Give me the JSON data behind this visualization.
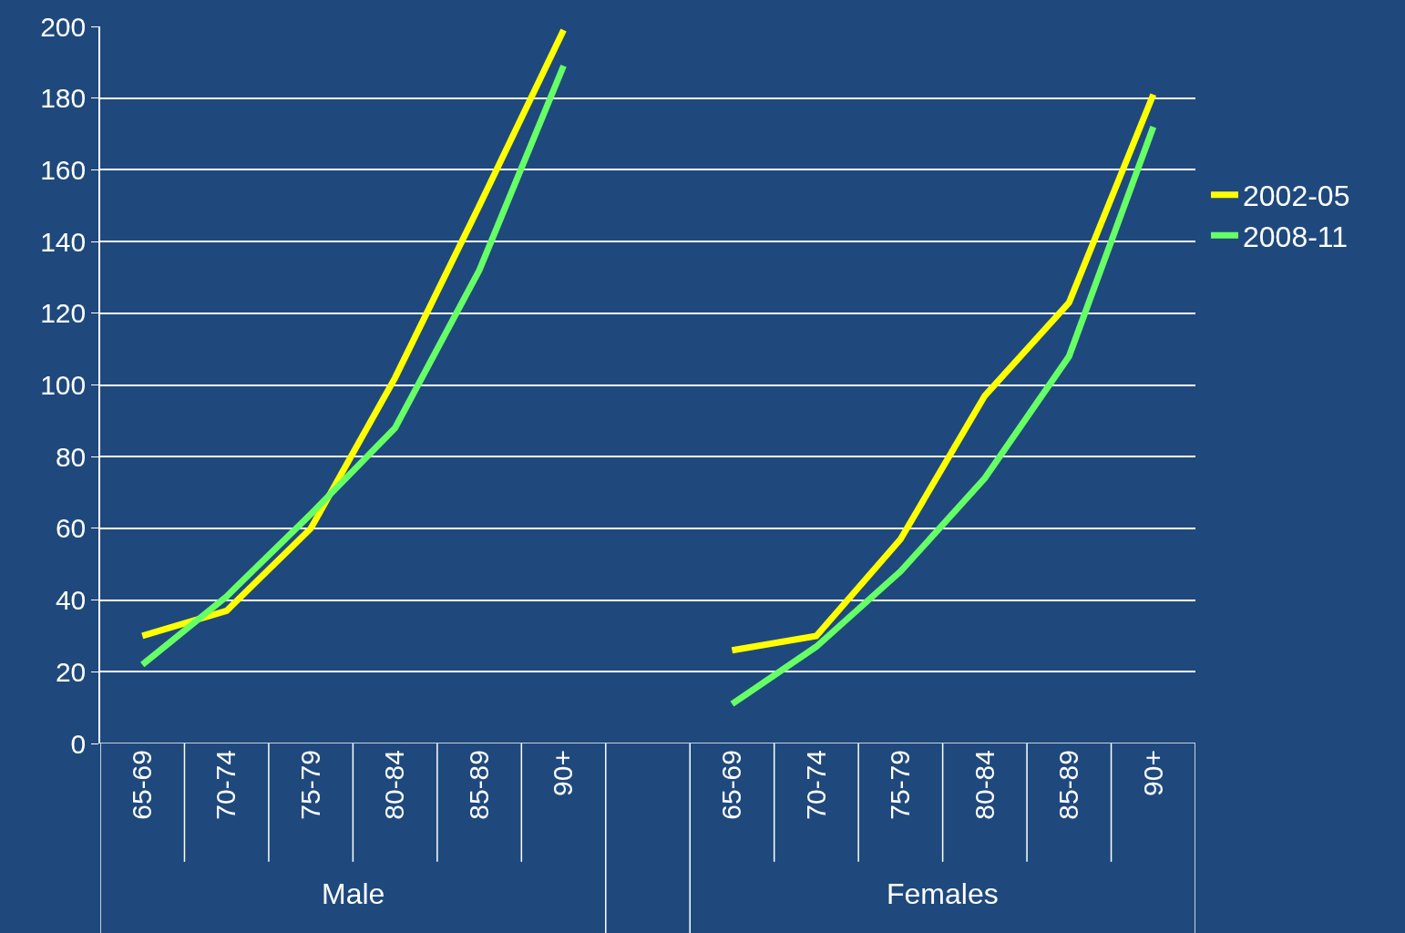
{
  "chart_data": {
    "type": "line",
    "categories": [
      "65-69",
      "70-74",
      "75-79",
      "80-84",
      "85-89",
      "90+",
      null,
      "65-69",
      "70-74",
      "75-79",
      "80-84",
      "85-89",
      "90+"
    ],
    "series": [
      {
        "name": "2002-05",
        "color": "#ffff00",
        "values": [
          30,
          37,
          60,
          102,
          150,
          199,
          null,
          26,
          30,
          57,
          97,
          123,
          181
        ]
      },
      {
        "name": "2008-11",
        "color": "#66ff66",
        "values": [
          22,
          41,
          64,
          88,
          132,
          189,
          null,
          11,
          27,
          48,
          74,
          108,
          172
        ]
      }
    ],
    "ylim": [
      0,
      200
    ],
    "yticks": [
      0,
      20,
      40,
      60,
      80,
      100,
      120,
      140,
      160,
      180,
      200
    ],
    "grid": "y",
    "legend": "right",
    "marker": "none",
    "line_style": "solid",
    "annotations": [
      "Male",
      "Females"
    ]
  }
}
